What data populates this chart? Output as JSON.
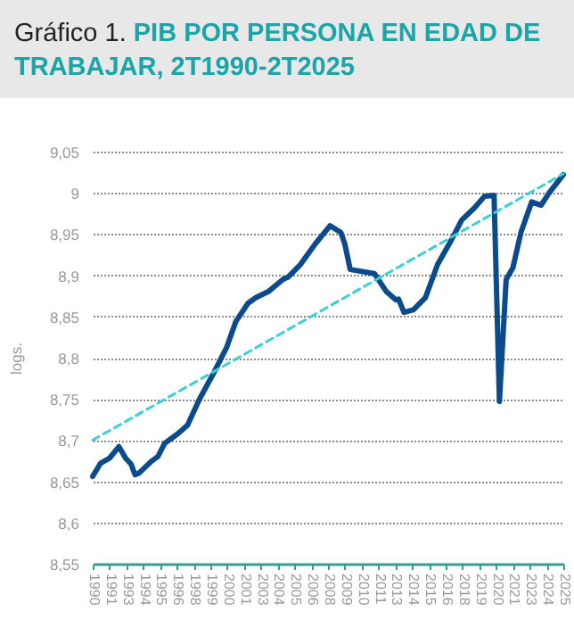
{
  "chart_data": {
    "type": "line",
    "title": "Gráfico 1.",
    "subtitle": "PIB POR PERSONA EN EDAD DE TRABAJAR, 2T1990-2T2025",
    "ylabel": "logs.",
    "series": [
      {
        "color": "#0b4a8b",
        "line_style": "solid",
        "x": [
          1990.25,
          1990.84,
          1991.5,
          1992.2,
          1992.7,
          1993.1,
          1993.4,
          1993.7,
          1994.6,
          1995.1,
          1995.6,
          1996.6,
          1997.3,
          1998.2,
          1999.3,
          2000.2,
          2000.9,
          2001.8,
          2002.4,
          2003.3,
          2004.4,
          2004.8,
          2005.7,
          2006.8,
          2007.9,
          2008.7,
          2009.0,
          2009.4,
          2011.2,
          2012.1,
          2012.8,
          2013.0,
          2013.4,
          2014.1,
          2015.0,
          2015.9,
          2016.8,
          2017.7,
          2018.6,
          2019.4,
          2020.1,
          2020.5,
          2021.0,
          2021.5,
          2022.1,
          2022.9,
          2023.6,
          2024.2,
          2025.25
        ],
        "values": [
          8.656,
          8.672,
          8.678,
          8.692,
          8.678,
          8.671,
          8.658,
          8.66,
          8.674,
          8.68,
          8.696,
          8.708,
          8.718,
          8.75,
          8.783,
          8.812,
          8.844,
          8.866,
          8.873,
          8.88,
          8.895,
          8.898,
          8.913,
          8.938,
          8.96,
          8.952,
          8.938,
          8.907,
          8.902,
          8.88,
          8.87,
          8.871,
          8.855,
          8.858,
          8.873,
          8.913,
          8.939,
          8.967,
          8.981,
          8.996,
          8.997,
          8.747,
          8.895,
          8.909,
          8.952,
          8.989,
          8.985,
          9.0,
          9.022
        ]
      },
      {
        "color": "#3ccfd6",
        "line_style": "dashed",
        "x": [
          1990.25,
          2025.25
        ],
        "values": [
          8.7,
          9.023
        ]
      }
    ],
    "xlim": [
      1990.25,
      2025.25
    ],
    "xticks": [
      {
        "value": 1990.25,
        "label": "1990"
      },
      {
        "value": 1991.5,
        "label": "1991"
      },
      {
        "value": 1992.75,
        "label": "1993"
      },
      {
        "value": 1994,
        "label": "1994"
      },
      {
        "value": 1995.25,
        "label": "1995"
      },
      {
        "value": 1996.5,
        "label": "1996"
      },
      {
        "value": 1997.75,
        "label": "1998"
      },
      {
        "value": 1999,
        "label": "1999"
      },
      {
        "value": 2000.25,
        "label": "2000"
      },
      {
        "value": 2001.5,
        "label": "2001"
      },
      {
        "value": 2002.75,
        "label": "2003"
      },
      {
        "value": 2004,
        "label": "2004"
      },
      {
        "value": 2005.25,
        "label": "2005"
      },
      {
        "value": 2006.5,
        "label": "2006"
      },
      {
        "value": 2007.75,
        "label": "2008"
      },
      {
        "value": 2009,
        "label": "2009"
      },
      {
        "value": 2010.25,
        "label": "2010"
      },
      {
        "value": 2011.5,
        "label": "2011"
      },
      {
        "value": 2012.75,
        "label": "2013"
      },
      {
        "value": 2014,
        "label": "2014"
      },
      {
        "value": 2015.25,
        "label": "2015"
      },
      {
        "value": 2016.5,
        "label": "2016"
      },
      {
        "value": 2017.75,
        "label": "2018"
      },
      {
        "value": 2019,
        "label": "2019"
      },
      {
        "value": 2020.25,
        "label": "2020"
      },
      {
        "value": 2021.5,
        "label": "2021"
      },
      {
        "value": 2022.75,
        "label": "2023"
      },
      {
        "value": 2024,
        "label": "2024"
      },
      {
        "value": 2025.25,
        "label": "2025"
      }
    ],
    "ylim": [
      8.55,
      9.05
    ],
    "yticks": [
      {
        "value": 8.55,
        "label": "8,55"
      },
      {
        "value": 8.6,
        "label": "8,6"
      },
      {
        "value": 8.65,
        "label": "8,65"
      },
      {
        "value": 8.7,
        "label": "8,7"
      },
      {
        "value": 8.75,
        "label": "8,75"
      },
      {
        "value": 8.8,
        "label": "8,8"
      },
      {
        "value": 8.85,
        "label": "8,85"
      },
      {
        "value": 8.9,
        "label": "8,9"
      },
      {
        "value": 8.95,
        "label": "8,95"
      },
      {
        "value": 9,
        "label": "9"
      },
      {
        "value": 9.05,
        "label": "9,05"
      }
    ],
    "grid": "y",
    "marker": "none"
  }
}
